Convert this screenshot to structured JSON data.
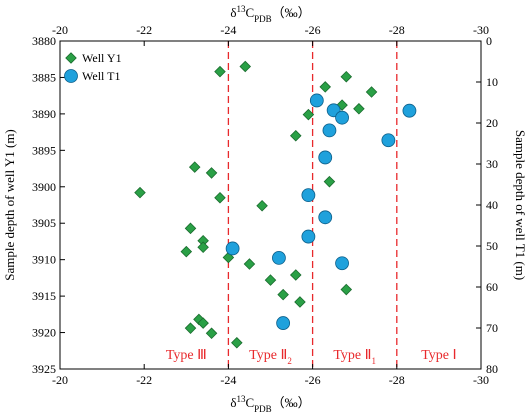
{
  "chart_data": {
    "type": "scatter",
    "x_axis": {
      "title_main": "δ",
      "title_sup": "13",
      "title_c": "C",
      "title_sub": "PDB",
      "title_unit": "（‰）",
      "range": [
        -20,
        -30
      ],
      "ticks": [
        "-20",
        "-22",
        "-24",
        "-26",
        "-28",
        "-30"
      ],
      "tick_values": [
        -20,
        -22,
        -24,
        -26,
        -28,
        -30
      ]
    },
    "y_left": {
      "title": "Sample depth of well Y1 (m)",
      "range": [
        3880,
        3925
      ],
      "ticks": [
        "3880",
        "3885",
        "3890",
        "3895",
        "3900",
        "3905",
        "3910",
        "3915",
        "3920",
        "3925"
      ],
      "tick_values": [
        3880,
        3885,
        3890,
        3895,
        3900,
        3905,
        3910,
        3915,
        3920,
        3925
      ]
    },
    "y_right": {
      "title": "Sample depth of well T1 (m)",
      "range": [
        0,
        80
      ],
      "ticks": [
        "0",
        "10",
        "20",
        "30",
        "40",
        "50",
        "60",
        "70",
        "80"
      ],
      "tick_values": [
        0,
        10,
        20,
        30,
        40,
        50,
        60,
        70,
        80
      ]
    },
    "boundaries": [
      -24,
      -26,
      -28
    ],
    "boundary_color": "#e8292c",
    "type_labels": [
      {
        "text": "Type Ⅲ",
        "sub": "",
        "x": -23
      },
      {
        "text": "Type Ⅱ",
        "sub": "2",
        "x": -25
      },
      {
        "text": "Type Ⅱ",
        "sub": "1",
        "x": -27
      },
      {
        "text": "Type Ⅰ",
        "sub": "",
        "x": -29
      }
    ],
    "legend": {
      "position": "top-left",
      "entries": [
        {
          "label": "Well Y1",
          "marker": "diamond"
        },
        {
          "label": "Well T1",
          "marker": "circle"
        }
      ]
    },
    "series": [
      {
        "name": "Well Y1",
        "marker": "diamond",
        "color": "#2aa046",
        "y_axis": "left",
        "points": [
          {
            "x": -23.8,
            "y": 3884.2
          },
          {
            "x": -24.4,
            "y": 3883.5
          },
          {
            "x": -26.3,
            "y": 3886.3
          },
          {
            "x": -26.8,
            "y": 3884.9
          },
          {
            "x": -27.4,
            "y": 3887.0
          },
          {
            "x": -26.7,
            "y": 3888.8
          },
          {
            "x": -27.1,
            "y": 3889.3
          },
          {
            "x": -25.9,
            "y": 3890.1
          },
          {
            "x": -25.6,
            "y": 3893.0
          },
          {
            "x": -21.9,
            "y": 3900.8
          },
          {
            "x": -23.2,
            "y": 3897.3
          },
          {
            "x": -23.6,
            "y": 3898.1
          },
          {
            "x": -23.8,
            "y": 3901.5
          },
          {
            "x": -24.8,
            "y": 3902.6
          },
          {
            "x": -26.4,
            "y": 3899.3
          },
          {
            "x": -23.1,
            "y": 3905.7
          },
          {
            "x": -23.4,
            "y": 3907.4
          },
          {
            "x": -23.4,
            "y": 3908.3
          },
          {
            "x": -23.0,
            "y": 3908.9
          },
          {
            "x": -24.0,
            "y": 3909.7
          },
          {
            "x": -24.5,
            "y": 3910.6
          },
          {
            "x": -25.6,
            "y": 3912.1
          },
          {
            "x": -25.0,
            "y": 3912.8
          },
          {
            "x": -25.3,
            "y": 3914.8
          },
          {
            "x": -25.7,
            "y": 3915.8
          },
          {
            "x": -26.8,
            "y": 3914.1
          },
          {
            "x": -23.3,
            "y": 3918.2
          },
          {
            "x": -23.4,
            "y": 3918.7
          },
          {
            "x": -23.1,
            "y": 3919.4
          },
          {
            "x": -23.6,
            "y": 3920.1
          },
          {
            "x": -24.2,
            "y": 3921.4
          }
        ]
      },
      {
        "name": "Well T1",
        "marker": "circle",
        "color": "#1fa1dc",
        "y_axis": "right",
        "points": [
          {
            "x": -26.1,
            "y": 14.5
          },
          {
            "x": -26.5,
            "y": 16.9
          },
          {
            "x": -26.7,
            "y": 18.7
          },
          {
            "x": -28.3,
            "y": 17.0
          },
          {
            "x": -27.8,
            "y": 24.2
          },
          {
            "x": -26.4,
            "y": 21.8
          },
          {
            "x": -26.3,
            "y": 28.4
          },
          {
            "x": -25.9,
            "y": 37.6
          },
          {
            "x": -26.3,
            "y": 43.0
          },
          {
            "x": -25.9,
            "y": 47.7
          },
          {
            "x": -24.1,
            "y": 50.6
          },
          {
            "x": -25.2,
            "y": 52.9
          },
          {
            "x": -26.7,
            "y": 54.2
          },
          {
            "x": -25.3,
            "y": 68.8
          }
        ]
      }
    ]
  }
}
